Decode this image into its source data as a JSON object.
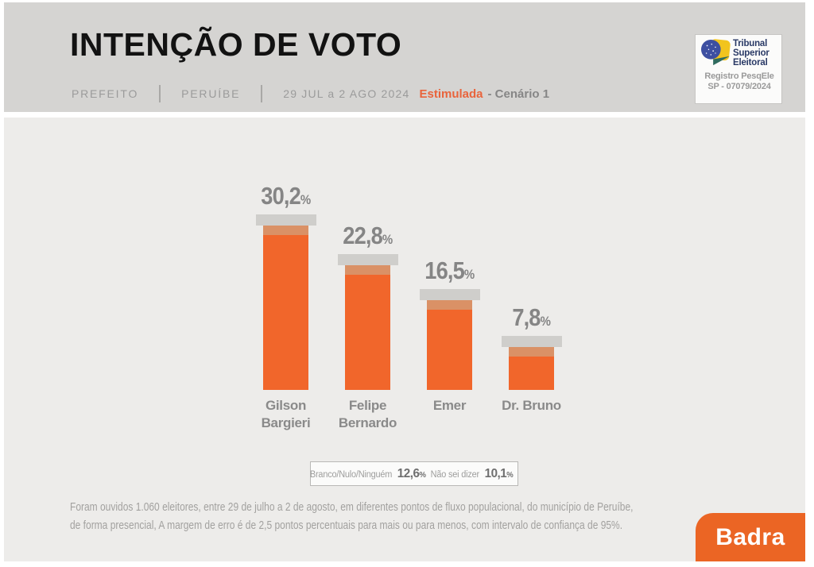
{
  "header": {
    "title": "INTENÇÃO DE VOTO",
    "meta": {
      "office": "PREFEITO",
      "city": "PERUÍBE",
      "date_range": "29 JUL a 2 AGO 2024",
      "mode": "Estimulada",
      "scenario": "- Cenário 1"
    },
    "tse_badge": {
      "org_line1": "Tribunal",
      "org_line2": "Superior",
      "org_line3": "Eleitoral",
      "registry_line1": "Registro PesqEle",
      "registry_line2": "SP - 07079/2024"
    }
  },
  "chart_data": {
    "type": "bar",
    "title": "INTENÇÃO DE VOTO",
    "subtitle": "PREFEITO | PERUÍBE | 29 JUL a 2 AGO 2024 | Estimulada - Cenário 1",
    "categories": [
      "Gilson Bargieri",
      "Felipe Bernardo",
      "Emer",
      "Dr. Bruno"
    ],
    "categories_lines": [
      [
        "Gilson",
        "Bargieri"
      ],
      [
        "Felipe",
        "Bernardo"
      ],
      [
        "Emer"
      ],
      [
        "Dr. Bruno"
      ]
    ],
    "values": [
      30.2,
      22.8,
      16.5,
      7.8
    ],
    "value_labels": [
      "30,2",
      "22,8",
      "16,5",
      "7,8"
    ],
    "unit": "%",
    "bar_color": "#f1662b",
    "ylim": [
      0,
      32
    ],
    "grid": false,
    "legend": false,
    "other_responses": [
      {
        "label": "Branco/Nulo/Ninguém",
        "value_label": "12,6"
      },
      {
        "label": "Não sei dizer",
        "value_label": "10,1"
      }
    ]
  },
  "footer": {
    "line1": "Foram ouvidos 1.060 eleitores, entre 29 de julho a 2 de agosto, em diferentes pontos de fluxo populacional, do município de Peruíbe,",
    "line2": "de forma presencial, A margem de erro é de 2,5 pontos percentuais para mais ou para menos, com intervalo de confiança de 95%."
  },
  "branding": {
    "logo_text": "Badra",
    "logo_color": "#eb6524"
  }
}
